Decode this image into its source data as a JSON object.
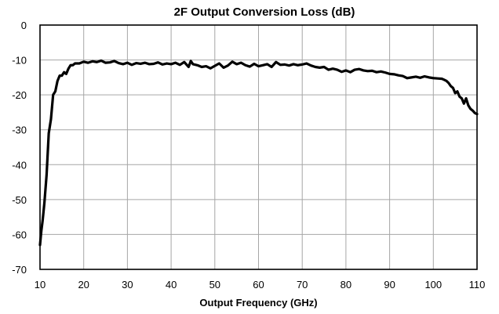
{
  "chart_data": {
    "type": "line",
    "title": "2F Output Conversion Loss (dB)",
    "xlabel": "Output Frequency (GHz)",
    "ylabel": "",
    "xlim": [
      10,
      110
    ],
    "ylim": [
      -70,
      0
    ],
    "xticks": [
      "10",
      "20",
      "30",
      "40",
      "50",
      "60",
      "70",
      "80",
      "90",
      "100",
      "110"
    ],
    "yticks": [
      "0",
      "-10",
      "-20",
      "-30",
      "-40",
      "-50",
      "-60",
      "-70"
    ],
    "grid": true,
    "series": [
      {
        "color": "#000000",
        "x": [
          10.0,
          10.3,
          10.6,
          11.0,
          11.5,
          12.0,
          12.5,
          13.0,
          13.5,
          14.0,
          14.5,
          15.0,
          15.5,
          16.0,
          16.5,
          17.0,
          17.5,
          18.0,
          19.0,
          20.0,
          21.0,
          22.0,
          23.0,
          24.0,
          25.0,
          26.0,
          27.0,
          28.0,
          29.0,
          30.0,
          31.0,
          32.0,
          33.0,
          34.0,
          35.0,
          36.0,
          37.0,
          38.0,
          39.0,
          40.0,
          41.0,
          42.0,
          43.0,
          44.0,
          44.5,
          45.0,
          46.0,
          47.0,
          48.0,
          49.0,
          50.0,
          51.0,
          52.0,
          53.0,
          54.0,
          55.0,
          56.0,
          57.0,
          58.0,
          59.0,
          60.0,
          61.0,
          62.0,
          63.0,
          64.0,
          65.0,
          66.0,
          67.0,
          68.0,
          69.0,
          70.0,
          71.0,
          72.0,
          73.0,
          74.0,
          75.0,
          76.0,
          77.0,
          78.0,
          79.0,
          80.0,
          81.0,
          82.0,
          83.0,
          84.0,
          85.0,
          86.0,
          87.0,
          88.0,
          89.0,
          90.0,
          91.0,
          92.0,
          93.0,
          94.0,
          95.0,
          96.0,
          97.0,
          98.0,
          99.0,
          100.0,
          101.0,
          102.0,
          102.5,
          103.0,
          103.5,
          104.0,
          104.5,
          105.0,
          105.5,
          106.0,
          106.5,
          107.0,
          107.5,
          108.0,
          108.5,
          109.0,
          109.5,
          110.0
        ],
        "y": [
          -63,
          -59,
          -56,
          -51,
          -43,
          -31,
          -27,
          -20,
          -19,
          -16,
          -14.5,
          -14.5,
          -13.5,
          -14,
          -12.5,
          -11.5,
          -11.5,
          -11,
          -11,
          -10.5,
          -10.8,
          -10.4,
          -10.6,
          -10.2,
          -10.8,
          -10.7,
          -10.3,
          -10.9,
          -11.2,
          -10.8,
          -11.4,
          -10.9,
          -11.1,
          -10.8,
          -11.2,
          -11.1,
          -10.7,
          -11.3,
          -11.0,
          -11.2,
          -10.8,
          -11.4,
          -10.6,
          -12.0,
          -10.3,
          -11.2,
          -11.5,
          -12.0,
          -11.8,
          -12.4,
          -11.7,
          -11.0,
          -12.2,
          -11.6,
          -10.5,
          -11.2,
          -10.8,
          -11.5,
          -11.9,
          -11.1,
          -11.8,
          -11.5,
          -11.2,
          -12.0,
          -10.6,
          -11.4,
          -11.3,
          -11.6,
          -11.2,
          -11.5,
          -11.3,
          -11.0,
          -11.6,
          -12.0,
          -12.2,
          -12.0,
          -12.8,
          -12.5,
          -12.8,
          -13.4,
          -13.0,
          -13.5,
          -12.8,
          -12.6,
          -13.0,
          -13.2,
          -13.1,
          -13.5,
          -13.3,
          -13.6,
          -14.0,
          -14.1,
          -14.4,
          -14.6,
          -15.2,
          -15.0,
          -14.8,
          -15.1,
          -14.7,
          -15.0,
          -15.2,
          -15.3,
          -15.4,
          -15.7,
          -16.0,
          -16.6,
          -17.5,
          -18.0,
          -19.5,
          -19.0,
          -20.5,
          -21.0,
          -22.5,
          -21.0,
          -23.0,
          -24.0,
          -24.5,
          -25.2,
          -25.5
        ]
      }
    ]
  }
}
